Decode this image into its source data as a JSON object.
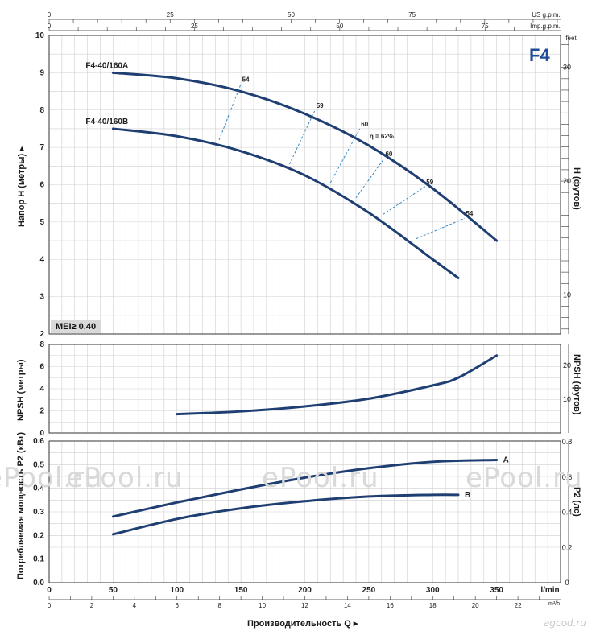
{
  "title_tag": "F4",
  "mei_label": "MEI≥ 0.40",
  "watermark": "ePool.ru",
  "footer": "agcod.ru",
  "axes_labels": {
    "us_gpm": "US g.p.m.",
    "imp_gpm": "Imp.g.p.m.",
    "feet": "feet",
    "head_left": "Напор H (метры)",
    "head_right": "H (футов)",
    "npsh_left": "NPSH (метры)",
    "npsh_right": "NPSH (футов)",
    "power_left": "Потребляемая мощность P2 (кВт)",
    "power_right": "P2 (лс)",
    "lmin": "l/min",
    "m3h": "m³/h",
    "x_title": "Производительность Q"
  },
  "colors": {
    "curve": "#1f3f73",
    "eff": "#3a8ac0",
    "grid": "#cfcfcf",
    "axis": "#333333",
    "title": "#1f4e96"
  },
  "chart_data": [
    {
      "type": "line",
      "panel": "head",
      "title": "F4",
      "xlabel": "Производительность Q",
      "ylabel": "Напор H (метры)",
      "xlim": [
        0,
        400
      ],
      "ylim": [
        2,
        10
      ],
      "y_ticks": [
        2,
        3,
        4,
        5,
        6,
        7,
        8,
        9,
        10
      ],
      "right_ticks_feet": [
        10,
        20,
        30
      ],
      "series": [
        {
          "name": "F4-40/160A",
          "x": [
            50,
            100,
            150,
            200,
            250,
            300,
            350
          ],
          "y": [
            9.0,
            8.85,
            8.5,
            7.9,
            7.05,
            5.9,
            4.5
          ]
        },
        {
          "name": "F4-40/160B",
          "x": [
            50,
            100,
            150,
            200,
            250,
            300,
            320
          ],
          "y": [
            7.5,
            7.3,
            6.9,
            6.25,
            5.25,
            4.0,
            3.5
          ]
        }
      ],
      "efficiency_lines": [
        {
          "label": "54",
          "from": [
            133,
            7.2
          ],
          "to": [
            150,
            8.7
          ]
        },
        {
          "label": "59",
          "from": [
            188,
            6.55
          ],
          "to": [
            208,
            8.0
          ]
        },
        {
          "label": "60",
          "from": [
            220,
            6.05
          ],
          "to": [
            243,
            7.5
          ]
        },
        {
          "label": "60",
          "from": [
            240,
            5.65
          ],
          "to": [
            262,
            6.7
          ]
        },
        {
          "label": "59",
          "from": [
            261,
            5.2
          ],
          "to": [
            294,
            5.95
          ]
        },
        {
          "label": "54",
          "from": [
            287,
            4.55
          ],
          "to": [
            325,
            5.1
          ]
        }
      ],
      "efficiency_peak_label": "η = 62%",
      "efficiency_peak": [
        250,
        7.3
      ]
    },
    {
      "type": "line",
      "panel": "npsh",
      "ylabel": "NPSH (метры)",
      "xlim": [
        0,
        400
      ],
      "ylim": [
        0,
        8
      ],
      "y_ticks": [
        0,
        2,
        4,
        6,
        8
      ],
      "right_ticks_feet": [
        10,
        20
      ],
      "series": [
        {
          "name": "",
          "x": [
            100,
            150,
            200,
            250,
            300,
            320,
            350
          ],
          "y": [
            1.7,
            1.95,
            2.4,
            3.1,
            4.3,
            5.0,
            7.0
          ]
        }
      ]
    },
    {
      "type": "line",
      "panel": "power",
      "ylabel": "Потребляемая мощность P2 (кВт)",
      "xlim": [
        0,
        400
      ],
      "ylim": [
        0,
        0.6
      ],
      "y_ticks": [
        0,
        0.1,
        0.2,
        0.3,
        0.4,
        0.5,
        0.6
      ],
      "right_ticks_hp": [
        0,
        0.2,
        0.4,
        0.6,
        0.8
      ],
      "series": [
        {
          "name": "A",
          "x": [
            50,
            100,
            150,
            200,
            250,
            300,
            350
          ],
          "y": [
            0.28,
            0.34,
            0.395,
            0.445,
            0.485,
            0.512,
            0.52
          ]
        },
        {
          "name": "B",
          "x": [
            50,
            100,
            150,
            200,
            250,
            300,
            320
          ],
          "y": [
            0.205,
            0.27,
            0.315,
            0.345,
            0.365,
            0.372,
            0.372
          ]
        }
      ],
      "x_ticks_lmin": [
        0,
        50,
        100,
        150,
        200,
        250,
        300,
        350
      ],
      "x_ticks_m3h": [
        0,
        2,
        4,
        6,
        8,
        10,
        12,
        14,
        16,
        18,
        20,
        22
      ],
      "top_ticks_us_gpm": [
        0,
        25,
        50,
        75
      ],
      "top_ticks_imp_gpm": [
        0,
        25,
        50,
        75
      ]
    }
  ]
}
